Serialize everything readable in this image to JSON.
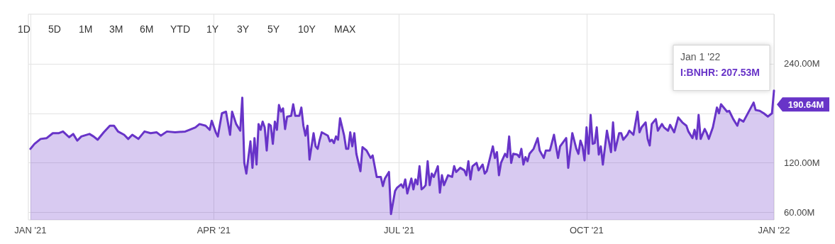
{
  "chart_data": {
    "type": "area",
    "x": [
      "2021-01-01",
      "2021-01-03",
      "2021-01-06",
      "2021-01-09",
      "2021-01-12",
      "2021-01-15",
      "2021-01-17",
      "2021-01-20",
      "2021-01-22",
      "2021-01-24",
      "2021-01-26",
      "2021-01-30",
      "2021-02-01",
      "2021-02-03",
      "2021-02-06",
      "2021-02-09",
      "2021-02-11",
      "2021-02-13",
      "2021-02-16",
      "2021-02-18",
      "2021-02-20",
      "2021-02-23",
      "2021-02-26",
      "2021-03-01",
      "2021-03-04",
      "2021-03-06",
      "2021-03-09",
      "2021-03-13",
      "2021-03-18",
      "2021-03-20",
      "2021-03-23",
      "2021-03-25",
      "2021-03-28",
      "2021-03-30",
      "2021-03-31",
      "2021-04-02",
      "2021-04-03",
      "2021-04-05",
      "2021-04-07",
      "2021-04-09",
      "2021-04-10",
      "2021-04-12",
      "2021-04-14",
      "2021-04-15",
      "2021-04-16",
      "2021-04-17",
      "2021-04-19",
      "2021-04-20",
      "2021-04-21",
      "2021-04-22",
      "2021-04-23",
      "2021-04-24",
      "2021-04-25",
      "2021-04-26",
      "2021-04-27",
      "2021-04-28",
      "2021-04-29",
      "2021-04-30",
      "2021-05-01",
      "2021-05-02",
      "2021-05-03",
      "2021-05-04",
      "2021-05-05",
      "2021-05-06",
      "2021-05-07",
      "2021-05-09",
      "2021-05-10",
      "2021-05-11",
      "2021-05-13",
      "2021-05-14",
      "2021-05-15",
      "2021-05-16",
      "2021-05-17",
      "2021-05-18",
      "2021-05-20",
      "2021-05-21",
      "2021-05-22",
      "2021-05-23",
      "2021-05-24",
      "2021-05-27",
      "2021-05-28",
      "2021-05-29",
      "2021-05-30",
      "2021-05-31",
      "2021-06-01",
      "2021-06-02",
      "2021-06-04",
      "2021-06-05",
      "2021-06-06",
      "2021-06-07",
      "2021-06-08",
      "2021-06-09",
      "2021-06-10",
      "2021-06-12",
      "2021-06-13",
      "2021-06-15",
      "2021-06-17",
      "2021-06-18",
      "2021-06-20",
      "2021-06-22",
      "2021-06-23",
      "2021-06-24",
      "2021-06-26",
      "2021-06-27",
      "2021-06-29",
      "2021-06-30",
      "2021-07-02",
      "2021-07-03",
      "2021-07-04",
      "2021-07-05",
      "2021-07-07",
      "2021-07-08",
      "2021-07-09",
      "2021-07-10",
      "2021-07-11",
      "2021-07-12",
      "2021-07-13",
      "2021-07-14",
      "2021-07-15",
      "2021-07-16",
      "2021-07-17",
      "2021-07-18",
      "2021-07-20",
      "2021-07-21",
      "2021-07-22",
      "2021-07-23",
      "2021-07-25",
      "2021-07-27",
      "2021-07-28",
      "2021-07-29",
      "2021-07-31",
      "2021-08-02",
      "2021-08-03",
      "2021-08-04",
      "2021-08-05",
      "2021-08-06",
      "2021-08-08",
      "2021-08-09",
      "2021-08-11",
      "2021-08-12",
      "2021-08-13",
      "2021-08-16",
      "2021-08-17",
      "2021-08-18",
      "2021-08-19",
      "2021-08-20",
      "2021-08-22",
      "2021-08-23",
      "2021-08-24",
      "2021-08-25",
      "2021-08-26",
      "2021-08-28",
      "2021-08-29",
      "2021-08-30",
      "2021-08-31",
      "2021-09-01",
      "2021-09-02",
      "2021-09-03",
      "2021-09-05",
      "2021-09-07",
      "2021-09-08",
      "2021-09-10",
      "2021-09-11",
      "2021-09-13",
      "2021-09-15",
      "2021-09-17",
      "2021-09-18",
      "2021-09-21",
      "2021-09-22",
      "2021-09-24",
      "2021-09-26",
      "2021-09-27",
      "2021-09-28",
      "2021-09-29",
      "2021-09-30",
      "2021-10-01",
      "2021-10-02",
      "2021-10-03",
      "2021-10-04",
      "2021-10-05",
      "2021-10-06",
      "2021-10-07",
      "2021-10-08",
      "2021-10-09",
      "2021-10-11",
      "2021-10-13",
      "2021-10-14",
      "2021-10-15",
      "2021-10-17",
      "2021-10-18",
      "2021-10-19",
      "2021-10-21",
      "2021-10-22",
      "2021-10-24",
      "2021-10-26",
      "2021-10-27",
      "2021-10-28",
      "2021-10-30",
      "2021-10-31",
      "2021-11-01",
      "2021-11-02",
      "2021-11-04",
      "2021-11-05",
      "2021-11-07",
      "2021-11-08",
      "2021-11-10",
      "2021-11-11",
      "2021-11-13",
      "2021-11-15",
      "2021-11-17",
      "2021-11-19",
      "2021-11-20",
      "2021-11-22",
      "2021-11-23",
      "2021-11-24",
      "2021-11-25",
      "2021-11-26",
      "2021-11-28",
      "2021-11-29",
      "2021-11-30",
      "2021-12-02",
      "2021-12-04",
      "2021-12-05",
      "2021-12-06",
      "2021-12-09",
      "2021-12-10",
      "2021-12-12",
      "2021-12-14",
      "2021-12-15",
      "2021-12-17",
      "2021-12-22",
      "2021-12-23",
      "2021-12-25",
      "2021-12-27",
      "2021-12-29",
      "2021-12-31",
      "2022-01-01"
    ],
    "series": [
      {
        "color": "#6834c8",
        "values": [
          137,
          143,
          149,
          150,
          156,
          156,
          158,
          151,
          155,
          147,
          152,
          155,
          152,
          148,
          157,
          165,
          165,
          158,
          154,
          149,
          154,
          149,
          158,
          156,
          157,
          153,
          158,
          157,
          158,
          160,
          163,
          167,
          165,
          160,
          171,
          157,
          152,
          180,
          182,
          154,
          182,
          167,
          159,
          199,
          120,
          107,
          146,
          114,
          150,
          118,
          167,
          160,
          170,
          163,
          135,
          167,
          165,
          143,
          170,
          160,
          190,
          182,
          186,
          161,
          176,
          177,
          191,
          177,
          177,
          187,
          165,
          153,
          165,
          124,
          156,
          140,
          137,
          148,
          157,
          153,
          146,
          148,
          144,
          152,
          148,
          174,
          153,
          137,
          137,
          157,
          140,
          156,
          131,
          110,
          139,
          135,
          126,
          129,
          103,
          103,
          92,
          101,
          109,
          58,
          86,
          90,
          94,
          90,
          100,
          83,
          101,
          88,
          100,
          94,
          116,
          88,
          90,
          93,
          122,
          93,
          107,
          103,
          116,
          84,
          105,
          93,
          105,
          103,
          116,
          109,
          114,
          111,
          105,
          122,
          100,
          116,
          120,
          111,
          118,
          107,
          110,
          140,
          126,
          133,
          105,
          120,
          131,
          127,
          152,
          120,
          131,
          130,
          127,
          137,
          118,
          127,
          122,
          131,
          137,
          150,
          135,
          126,
          135,
          135,
          154,
          126,
          140,
          150,
          114,
          156,
          137,
          131,
          147,
          140,
          123,
          163,
          131,
          178,
          143,
          144,
          163,
          130,
          140,
          118,
          159,
          133,
          169,
          135,
          156,
          156,
          148,
          154,
          159,
          154,
          182,
          157,
          163,
          169,
          149,
          141,
          167,
          173,
          159,
          167,
          163,
          159,
          166,
          157,
          175,
          169,
          165,
          158,
          150,
          160,
          149,
          178,
          149,
          161,
          156,
          149,
          163,
          187,
          180,
          191,
          182,
          183,
          173,
          165,
          173,
          170,
          193,
          184,
          183,
          180,
          176,
          180,
          207.53
        ]
      }
    ],
    "xlim": [
      "2020-12-31",
      "2022-01-01"
    ],
    "xticks": [
      {
        "value": "2021-01-01",
        "label": "JAN '21"
      },
      {
        "value": "2021-04-01",
        "label": "APR '21"
      },
      {
        "value": "2021-07-01",
        "label": "JUL '21"
      },
      {
        "value": "2021-10-01",
        "label": "OCT '21"
      },
      {
        "value": "2022-01-01",
        "label": "JAN '22"
      }
    ],
    "ylim": [
      51,
      300
    ],
    "yticks": [
      {
        "value": 60,
        "label": "60.00M"
      },
      {
        "value": 120,
        "label": "120.00M"
      },
      {
        "value": 180,
        "label": null
      },
      {
        "value": 240,
        "label": "240.00M"
      }
    ],
    "grid": true,
    "marker": "none",
    "line_style": "solid",
    "annotations": [
      "1D",
      "5D",
      "1M",
      "3M",
      "6M",
      "YTD",
      "1Y",
      "3Y",
      "5Y",
      "10Y",
      "MAX",
      {
        "text": "190.64M",
        "x": "2022-01-01",
        "y": 190.64
      },
      "Jan 1 '22",
      "I:BNHR: 207.53M"
    ]
  }
}
